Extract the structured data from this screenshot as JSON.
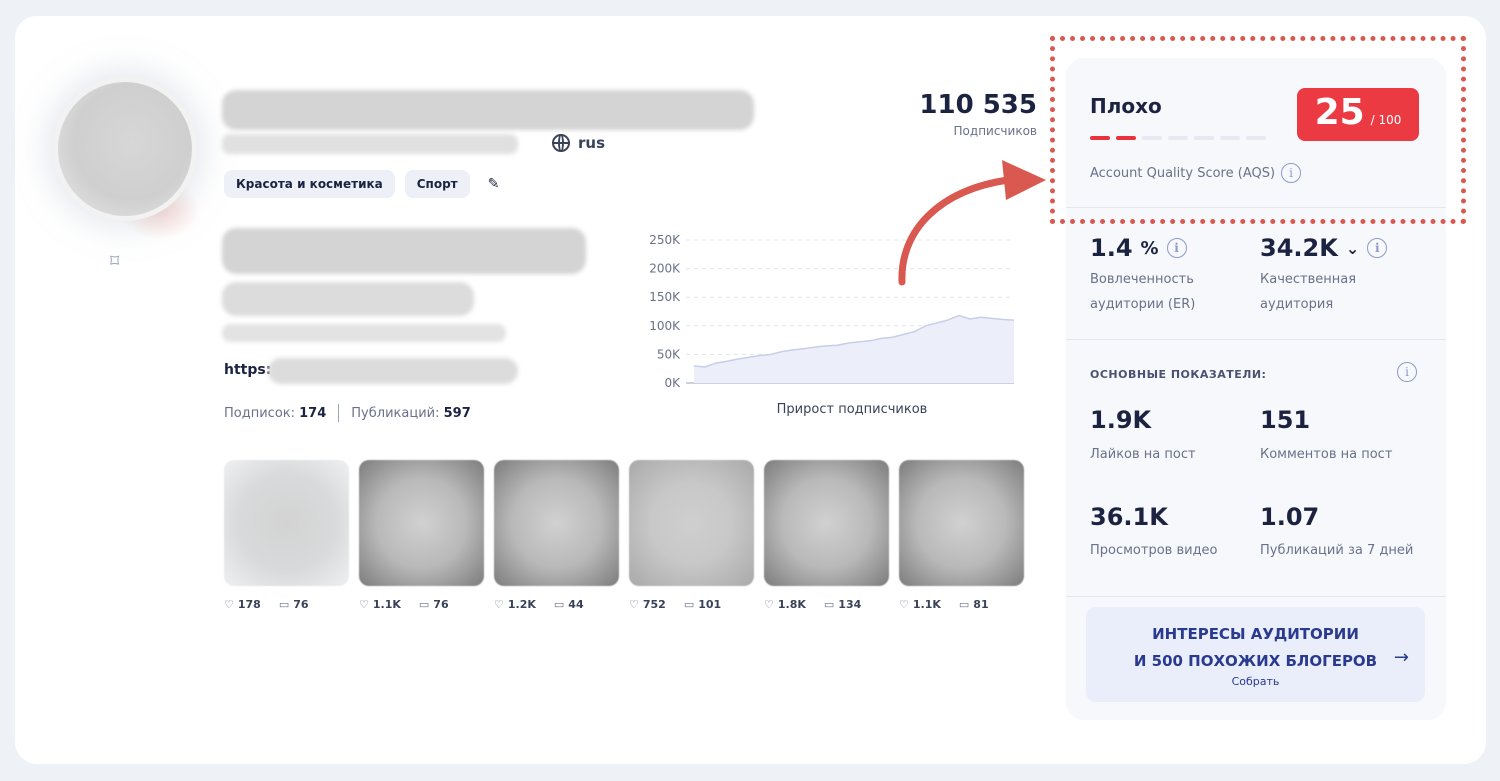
{
  "profile": {
    "language": "rus",
    "tags": [
      "Красота и косметика",
      "Спорт"
    ],
    "link_prefix": "https:",
    "following_label": "Подписок:",
    "following_value": "174",
    "posts_label": "Публикаций:",
    "posts_value": "597",
    "followers_value": "110 535",
    "followers_label": "Подписчиков"
  },
  "chart_data": {
    "type": "area",
    "title": "Прирост подписчиков",
    "yticks": [
      "250K",
      "200K",
      "150K",
      "100K",
      "50K",
      "0K"
    ],
    "ylim": [
      0,
      250000
    ],
    "grid": true,
    "values": [
      30000,
      28000,
      35000,
      38000,
      42000,
      45000,
      48000,
      50000,
      55000,
      58000,
      60000,
      63000,
      65000,
      66000,
      70000,
      72000,
      74000,
      78000,
      80000,
      85000,
      90000,
      100000,
      105000,
      110000,
      118000,
      112000,
      115000,
      113000,
      111000,
      110000
    ]
  },
  "posts": [
    {
      "likes": "178",
      "comments": "76",
      "tone": "light"
    },
    {
      "likes": "1.1K",
      "comments": "76",
      "tone": "dark"
    },
    {
      "likes": "1.2K",
      "comments": "44",
      "tone": "dark"
    },
    {
      "likes": "752",
      "comments": "101",
      "tone": "normal"
    },
    {
      "likes": "1.8K",
      "comments": "134",
      "tone": "dark"
    },
    {
      "likes": "1.1K",
      "comments": "81",
      "tone": "dark"
    }
  ],
  "aqs": {
    "rating": "Плохо",
    "score": "25",
    "max": "/ 100",
    "label": "Account Quality Score (AQS)",
    "level_fraction": 0.25,
    "bars_on": 2,
    "bars_total": 7,
    "accent": "#e8323c"
  },
  "metrics": {
    "er_value": "1.4",
    "er_unit": "%",
    "er_label_1": "Вовлеченность",
    "er_label_2": "аудитории (ER)",
    "quality_value": "34.2K",
    "quality_label_1": "Качественная",
    "quality_label_2": "аудитория"
  },
  "main_stats": {
    "title": "ОСНОВНЫЕ ПОКАЗАТЕЛИ:",
    "likes_value": "1.9K",
    "likes_label": "Лайков на пост",
    "comments_value": "151",
    "comments_label": "Комментов на пост",
    "views_value": "36.1K",
    "views_label": "Просмотров видео",
    "pubs_value": "1.07",
    "pubs_label": "Публикаций за 7 дней"
  },
  "cta": {
    "line1": "ИНТЕРЕСЫ АУДИТОРИИ",
    "line2": "И 500 ПОХОЖИХ БЛОГЕРОВ",
    "arrow": "→",
    "sub": "Собрать"
  },
  "icons": {
    "info": "i",
    "heart": "♡",
    "comment": "▭",
    "bookmark": "⌑",
    "pencil": "✎",
    "chevron": "⌄"
  }
}
